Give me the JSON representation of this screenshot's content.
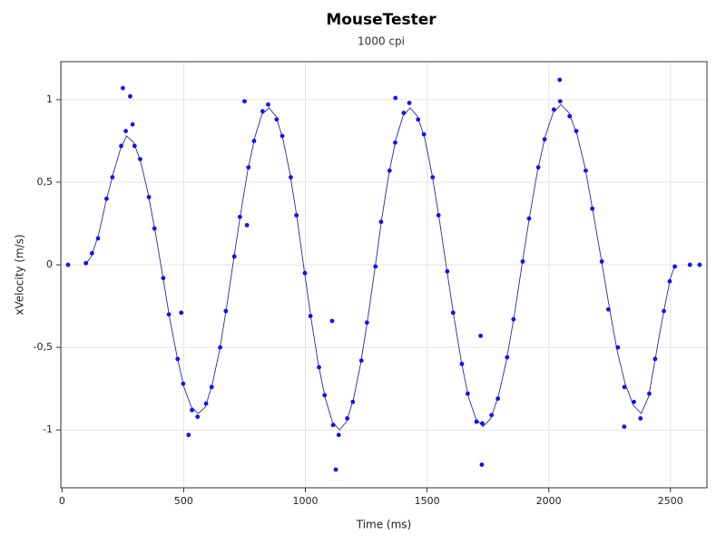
{
  "chart_data": {
    "type": "scatter",
    "title": "MouseTester",
    "subtitle": "1000 cpi",
    "x_label": "Time (ms)",
    "y_label": "xVelocity (m/s)",
    "xlim": [
      -5,
      2650
    ],
    "ylim": [
      -1.35,
      1.23
    ],
    "xticks": [
      0,
      500,
      1000,
      1500,
      2000,
      2500
    ],
    "yticks": [
      1,
      {
        "value": 0.5,
        "label": "0,5"
      },
      0,
      {
        "value": -0.5,
        "label": "-0,5"
      },
      -1
    ],
    "grid": true,
    "points": {
      "color": "#1010ff",
      "x": [
        25,
        98,
        123,
        148,
        183,
        207,
        243,
        262,
        298,
        321,
        357,
        380,
        416,
        439,
        475,
        498,
        534,
        557,
        592,
        615,
        650,
        673,
        708,
        731,
        766,
        789,
        824,
        847,
        882,
        905,
        940,
        963,
        998,
        1021,
        1056,
        1079,
        1114,
        1137,
        1172,
        1195,
        1230,
        1253,
        1288,
        1311,
        1346,
        1369,
        1404,
        1427,
        1463,
        1487,
        1523,
        1547,
        1583,
        1607,
        1643,
        1667,
        1703,
        1727,
        1765,
        1791,
        1829,
        1855,
        1893,
        1919,
        1957,
        1983,
        2021,
        2047,
        2086,
        2113,
        2152,
        2179,
        2218,
        2245,
        2284,
        2311,
        2350,
        2377,
        2413,
        2437,
        2473,
        2497,
        2518,
        250,
        280,
        290,
        490,
        520,
        750,
        760,
        1110,
        1125,
        1370,
        1720,
        1725,
        2045,
        2310,
        2580,
        2620
      ],
      "values": [
        0,
        0.01,
        0.07,
        0.16,
        0.4,
        0.53,
        0.72,
        0.81,
        0.72,
        0.64,
        0.41,
        0.22,
        -0.08,
        -0.3,
        -0.57,
        -0.72,
        -0.88,
        -0.92,
        -0.84,
        -0.74,
        -0.5,
        -0.28,
        0.05,
        0.29,
        0.59,
        0.75,
        0.93,
        0.97,
        0.88,
        0.78,
        0.53,
        0.3,
        -0.05,
        -0.31,
        -0.62,
        -0.79,
        -0.97,
        -1.03,
        -0.93,
        -0.83,
        -0.58,
        -0.35,
        -0.01,
        0.26,
        0.57,
        0.74,
        0.92,
        0.98,
        0.88,
        0.79,
        0.53,
        0.3,
        -0.04,
        -0.29,
        -0.6,
        -0.78,
        -0.95,
        -0.96,
        -0.91,
        -0.81,
        -0.56,
        -0.33,
        0.02,
        0.28,
        0.59,
        0.76,
        0.94,
        0.99,
        0.9,
        0.81,
        0.57,
        0.34,
        0.02,
        -0.27,
        -0.5,
        -0.74,
        -0.83,
        -0.93,
        -0.78,
        -0.57,
        -0.28,
        -0.1,
        -0.01,
        1.07,
        1.02,
        0.85,
        -0.29,
        -1.03,
        0.99,
        0.24,
        -0.34,
        -1.24,
        1.01,
        -0.43,
        -1.21,
        1.12,
        -0.98,
        0,
        0
      ]
    },
    "line": {
      "color": "#2a2a9a",
      "x": [
        95,
        120,
        150,
        180,
        210,
        240,
        265,
        295,
        324,
        354,
        383,
        413,
        442,
        472,
        501,
        531,
        560,
        589,
        618,
        647,
        676,
        705,
        734,
        763,
        792,
        821,
        850,
        879,
        908,
        937,
        966,
        995,
        1024,
        1053,
        1082,
        1111,
        1140,
        1169,
        1198,
        1227,
        1256,
        1285,
        1314,
        1343,
        1372,
        1401,
        1430,
        1460,
        1490,
        1520,
        1550,
        1580,
        1610,
        1640,
        1670,
        1700,
        1730,
        1762,
        1794,
        1826,
        1858,
        1890,
        1922,
        1954,
        1986,
        2018,
        2050,
        2083,
        2116,
        2149,
        2182,
        2215,
        2248,
        2281,
        2314,
        2347,
        2380,
        2410,
        2440,
        2470,
        2500,
        2515
      ],
      "values": [
        0,
        0.05,
        0.18,
        0.38,
        0.55,
        0.7,
        0.78,
        0.74,
        0.62,
        0.43,
        0.2,
        -0.06,
        -0.32,
        -0.55,
        -0.74,
        -0.86,
        -0.9,
        -0.86,
        -0.72,
        -0.52,
        -0.26,
        0.03,
        0.31,
        0.57,
        0.77,
        0.91,
        0.95,
        0.9,
        0.76,
        0.55,
        0.28,
        -0.03,
        -0.33,
        -0.6,
        -0.81,
        -0.95,
        -1,
        -0.95,
        -0.81,
        -0.6,
        -0.33,
        -0.03,
        0.28,
        0.55,
        0.76,
        0.9,
        0.95,
        0.9,
        0.77,
        0.55,
        0.28,
        -0.02,
        -0.31,
        -0.58,
        -0.8,
        -0.93,
        -0.98,
        -0.93,
        -0.79,
        -0.58,
        -0.31,
        0,
        0.3,
        0.57,
        0.78,
        0.92,
        0.97,
        0.92,
        0.79,
        0.59,
        0.32,
        0.04,
        -0.25,
        -0.52,
        -0.72,
        -0.85,
        -0.9,
        -0.8,
        -0.55,
        -0.3,
        -0.08,
        -0.02
      ]
    }
  }
}
